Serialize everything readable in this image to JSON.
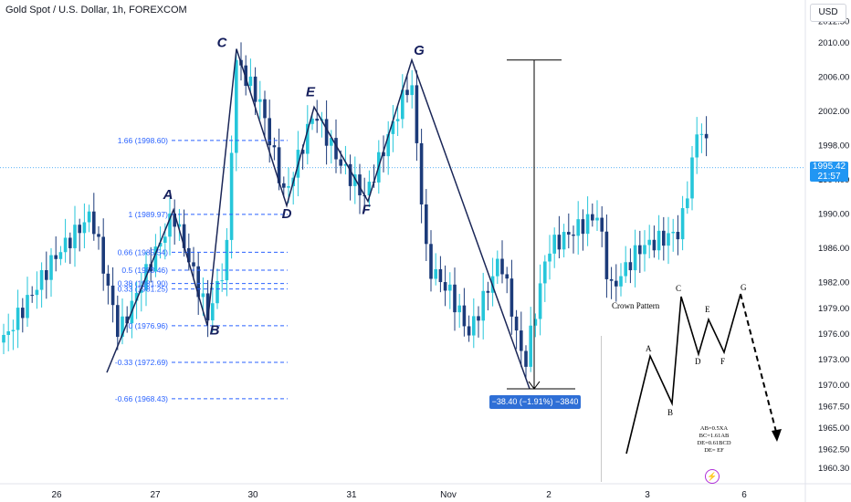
{
  "header": {
    "title": "Gold Spot / U.S. Dollar, 1h, FOREXCOM",
    "currency_label": "USD"
  },
  "price_badge": {
    "price": "1995.42",
    "countdown": "21:57"
  },
  "measure_label": "−38.40 (−1.91%) −3840",
  "inset": {
    "caption": "Crown Pattern",
    "points": [
      "A",
      "B",
      "C",
      "D",
      "E",
      "F",
      "G"
    ],
    "formulas": [
      "AB=0.5XA",
      "BC=1.61AB",
      "DE=0.61BCD",
      "DE= EF"
    ],
    "icon": "lightning-bolt-icon"
  },
  "colors": {
    "bull": "#26c6da",
    "bear": "#1c3b7a",
    "pattern_line": "#1a2657",
    "fib": "#2962ff",
    "current_price": "#2196f3"
  },
  "chart_data": {
    "type": "candlestick",
    "title": "Gold Spot / U.S. Dollar, 1h, FOREXCOM",
    "y_axis": {
      "range": [
        1959.0,
        2013.5
      ],
      "ticks": [
        "2012.50",
        "2010.00",
        "2006.00",
        "2002.00",
        "1998.00",
        "1994.00",
        "1990.00",
        "1986.00",
        "1982.00",
        "1979.00",
        "1976.00",
        "1973.00",
        "1970.00",
        "1967.50",
        "1965.00",
        "1962.50",
        "1960.30"
      ]
    },
    "x_axis": {
      "labels": [
        "26",
        "27",
        "30",
        "31",
        "Nov",
        "2",
        "3",
        "6"
      ]
    },
    "current_price": 1995.42,
    "pattern": {
      "points": [
        {
          "label": "A",
          "price": 1990.5
        },
        {
          "label": "B",
          "price": 1977.0
        },
        {
          "label": "C",
          "price": 2009.3
        },
        {
          "label": "D",
          "price": 1991.0
        },
        {
          "label": "E",
          "price": 2002.5
        },
        {
          "label": "F",
          "price": 1991.5
        },
        {
          "label": "G",
          "price": 2008.0
        }
      ]
    },
    "fib_levels": [
      {
        "label": "1.66 (1998.60)",
        "price": 1998.6
      },
      {
        "label": "1 (1989.97)",
        "price": 1989.97
      },
      {
        "label": "0.66 (1985.54)",
        "price": 1985.54
      },
      {
        "label": "0.5 (1983.46)",
        "price": 1983.46
      },
      {
        "label": "0.38 (1981.90)",
        "price": 1981.9
      },
      {
        "label": "0.33 (1981.25)",
        "price": 1981.25
      },
      {
        "label": "0 (1976.96)",
        "price": 1976.96
      },
      {
        "label": "-0.33 (1972.69)",
        "price": 1972.69
      },
      {
        "label": "-0.66 (1968.43)",
        "price": 1968.43
      }
    ],
    "measurement": {
      "from": 2008.0,
      "to": 1969.6,
      "text": "−38.40 (−1.91%) −3840"
    }
  }
}
